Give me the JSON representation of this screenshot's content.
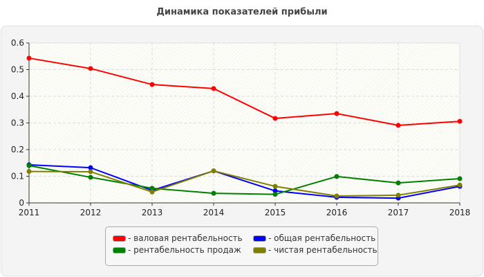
{
  "chart_data": {
    "type": "line",
    "title": "Динамика показателей прибыли",
    "categories": [
      "2011",
      "2012",
      "2013",
      "2014",
      "2015",
      "2016",
      "2017",
      "2018"
    ],
    "ylim": [
      0,
      0.6
    ],
    "yticks": [
      "0",
      "0.1",
      "0.2",
      "0.3",
      "0.4",
      "0.5",
      "0.6"
    ],
    "grid": true,
    "legend_position": "bottom",
    "series": [
      {
        "name": "- валовая рентабельность",
        "color": "#ff0000",
        "values": [
          0.543,
          0.504,
          0.444,
          0.429,
          0.317,
          0.335,
          0.291,
          0.306
        ]
      },
      {
        "name": "- общая рентабельность",
        "color": "#0000ff",
        "values": [
          0.143,
          0.132,
          0.047,
          0.12,
          0.045,
          0.021,
          0.018,
          0.062
        ]
      },
      {
        "name": "- рентабельность продаж",
        "color": "#008000",
        "values": [
          0.14,
          0.096,
          0.055,
          0.036,
          0.032,
          0.099,
          0.075,
          0.091
        ]
      },
      {
        "name": "- чистая рентабельность",
        "color": "#808000",
        "values": [
          0.118,
          0.117,
          0.041,
          0.12,
          0.062,
          0.026,
          0.029,
          0.067
        ]
      }
    ]
  }
}
